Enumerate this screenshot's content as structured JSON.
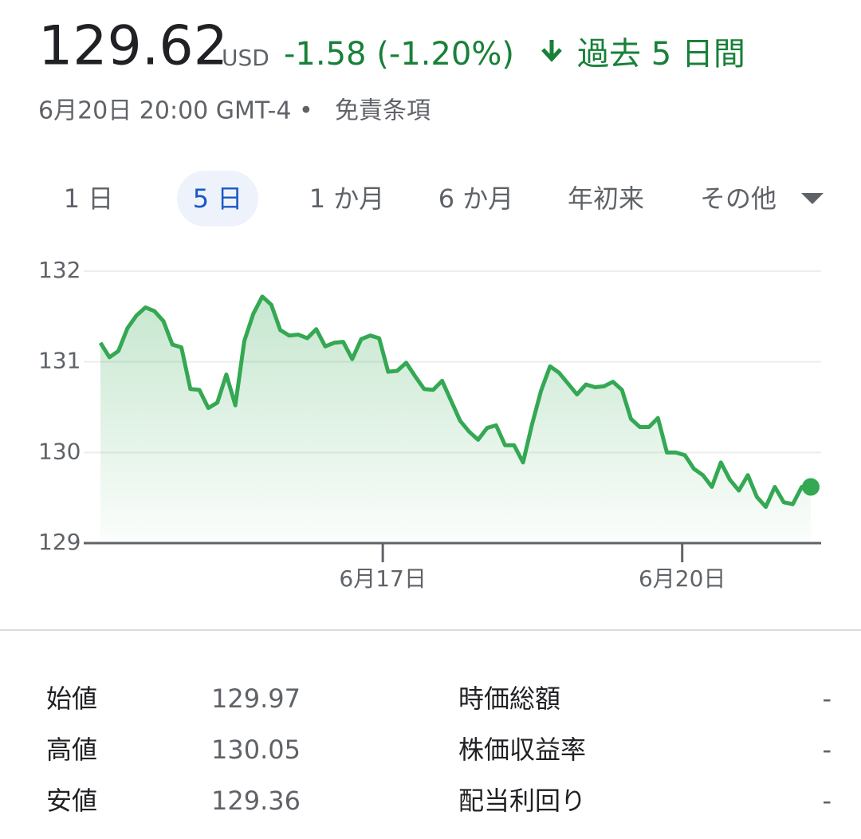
{
  "header": {
    "price": "129.62",
    "currency": "USD",
    "change": "-1.58 (-1.20%)",
    "period": "過去 5 日間",
    "timestamp": "6月20日 20:00 GMT-4 •",
    "disclaimer": "免責条項"
  },
  "tabs": [
    "1 日",
    "5 日",
    "1 か月",
    "6 か月",
    "年初来",
    "その他"
  ],
  "chart_data": {
    "type": "line",
    "color": "#34a853",
    "grid": true,
    "x": [
      0,
      1,
      2,
      3,
      4,
      5,
      6,
      7,
      8,
      9,
      10,
      11,
      12,
      13,
      14,
      15,
      16,
      17,
      18,
      19,
      20,
      21,
      22,
      23,
      24,
      25,
      26,
      27,
      28,
      29,
      30,
      31,
      32,
      33,
      34,
      35,
      36,
      37,
      38,
      39,
      40,
      41,
      42,
      43,
      44,
      45,
      46,
      47,
      48,
      49,
      50,
      51,
      52,
      53,
      54,
      55,
      56,
      57,
      58,
      59,
      60,
      61,
      62,
      63,
      64,
      65,
      66,
      67,
      68,
      69,
      70,
      71,
      72,
      73,
      74,
      75,
      76,
      77,
      78,
      79
    ],
    "values": [
      131.21,
      131.05,
      131.12,
      131.37,
      131.51,
      131.6,
      131.56,
      131.45,
      131.19,
      131.16,
      130.7,
      130.69,
      130.49,
      130.55,
      130.86,
      130.52,
      131.23,
      131.53,
      131.72,
      131.63,
      131.35,
      131.29,
      131.3,
      131.26,
      131.36,
      131.17,
      131.21,
      131.22,
      131.03,
      131.25,
      131.29,
      131.26,
      130.89,
      130.9,
      130.99,
      130.84,
      130.7,
      130.69,
      130.79,
      130.57,
      130.35,
      130.23,
      130.14,
      130.27,
      130.3,
      130.08,
      130.08,
      129.89,
      130.31,
      130.68,
      130.95,
      130.88,
      130.76,
      130.64,
      130.75,
      130.72,
      130.73,
      130.78,
      130.69,
      130.37,
      130.28,
      130.28,
      130.38,
      130,
      130,
      129.97,
      129.82,
      129.75,
      129.62,
      129.89,
      129.7,
      129.58,
      129.75,
      129.51,
      129.4,
      129.62,
      129.45,
      129.43,
      129.62,
      129.62
    ],
    "xlim": [
      0,
      79
    ],
    "xticks": [
      {
        "value": 31.4,
        "label": "6月17日"
      },
      {
        "value": 64.7,
        "label": "6月20日"
      }
    ],
    "ylim": [
      129,
      132
    ],
    "yticks": [
      129,
      130,
      131,
      132
    ]
  },
  "stats": {
    "rows": [
      [
        "始値",
        "129.97",
        "時価総額",
        "-"
      ],
      [
        "高値",
        "130.05",
        "株価収益率",
        "-"
      ],
      [
        "安値",
        "129.36",
        "配当利回り",
        "-"
      ]
    ]
  }
}
